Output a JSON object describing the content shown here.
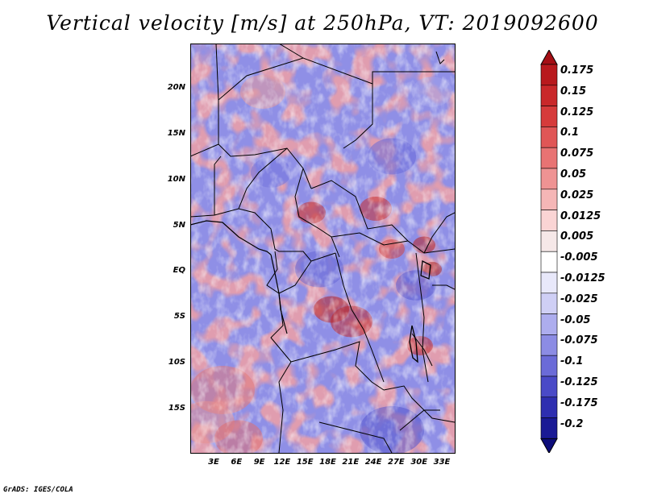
{
  "title": "Vertical velocity [m/s] at 250hPa, VT: 2019092600",
  "credit": "GrADS: IGES/COLA",
  "latitude_labels": [
    "20N",
    "15N",
    "10N",
    "5N",
    "EQ",
    "5S",
    "10S",
    "15S"
  ],
  "longitude_labels": [
    "3E",
    "6E",
    "9E",
    "12E",
    "15E",
    "18E",
    "21E",
    "24E",
    "27E",
    "30E",
    "33E"
  ],
  "colorbar": {
    "labels": [
      "0.175",
      "0.15",
      "0.125",
      "0.1",
      "0.075",
      "0.05",
      "0.025",
      "0.0125",
      "0.005",
      "-0.005",
      "-0.0125",
      "-0.025",
      "-0.05",
      "-0.075",
      "-0.1",
      "-0.125",
      "-0.175",
      "-0.2"
    ],
    "colors": [
      "#a50f15",
      "#b8191d",
      "#c9282a",
      "#d63b3b",
      "#e05656",
      "#e87373",
      "#ef9393",
      "#f5b6b6",
      "#fad4d4",
      "#f6e8e8",
      "#ffffff",
      "#e8e8fa",
      "#cfcff5",
      "#adadee",
      "#8c8ce4",
      "#6b6bd8",
      "#4a4ac7",
      "#2e2eb0",
      "#1a1a95",
      "#0d0d7a"
    ]
  },
  "palette": {
    "positive": "#c0282a",
    "negative": "#2828b5",
    "background_blue": "#8a8ae6"
  }
}
